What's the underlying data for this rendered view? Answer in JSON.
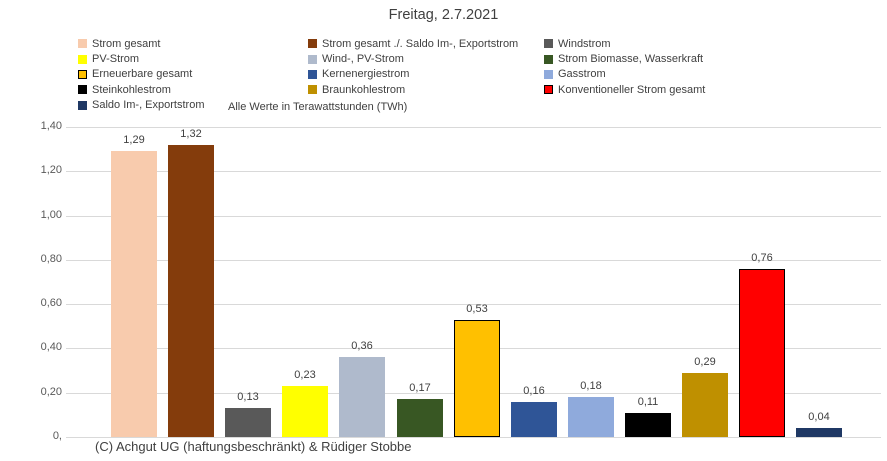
{
  "colors": {
    "grid": "#d9d9d9",
    "axis_text": "#595959",
    "label_text": "#404040",
    "title_text": "#3f3f3f",
    "background": "#ffffff"
  },
  "chart_data": {
    "type": "bar",
    "title": "Freitag, 2.7.2021",
    "subtitle": "Alle Werte in Terawattstunden (TWh)",
    "footer": "(C) Achgut UG (haftungsbeschränkt) & Rüdiger Stobbe",
    "unit": "TWh",
    "ylim": [
      0,
      1.4
    ],
    "ytick_step": 0.2,
    "ytick_labels": [
      "0,",
      "0,20",
      "0,40",
      "0,60",
      "0,80",
      "1,00",
      "1,20",
      "1,40"
    ],
    "grid": true,
    "legend_position": "top",
    "legend_columns": 3,
    "series": [
      {
        "name": "Strom gesamt",
        "value": 1.29,
        "label": "1,29",
        "color": "#F8CBAD",
        "outlined": false
      },
      {
        "name": "Strom gesamt ./. Saldo Im-, Exportstrom",
        "value": 1.32,
        "label": "1,32",
        "color": "#843C0C",
        "outlined": false
      },
      {
        "name": "Windstrom",
        "value": 0.13,
        "label": "0,13",
        "color": "#595959",
        "outlined": false
      },
      {
        "name": "PV-Strom",
        "value": 0.23,
        "label": "0,23",
        "color": "#FFFF00",
        "outlined": false
      },
      {
        "name": "Wind-, PV-Strom",
        "value": 0.36,
        "label": "0,36",
        "color": "#AFBACC",
        "outlined": false
      },
      {
        "name": "Strom Biomasse, Wasserkraft",
        "value": 0.17,
        "label": "0,17",
        "color": "#385723",
        "outlined": false
      },
      {
        "name": "Erneuerbare gesamt",
        "value": 0.53,
        "label": "0,53",
        "color": "#FFC000",
        "outlined": true
      },
      {
        "name": "Kernenergiestrom",
        "value": 0.16,
        "label": "0,16",
        "color": "#2F5597",
        "outlined": false
      },
      {
        "name": "Gasstrom",
        "value": 0.18,
        "label": "0,18",
        "color": "#8FAADC",
        "outlined": false
      },
      {
        "name": "Steinkohlestrom",
        "value": 0.11,
        "label": "0,11",
        "color": "#000000",
        "outlined": false
      },
      {
        "name": "Braunkohlestrom",
        "value": 0.29,
        "label": "0,29",
        "color": "#BF9000",
        "outlined": false
      },
      {
        "name": "Konventioneller Strom gesamt",
        "value": 0.76,
        "label": "0,76",
        "color": "#FF0000",
        "outlined": true
      },
      {
        "name": "Saldo Im-, Exportstrom",
        "value": 0.04,
        "label": "0,04",
        "color": "#1F3864",
        "outlined": false
      }
    ]
  }
}
